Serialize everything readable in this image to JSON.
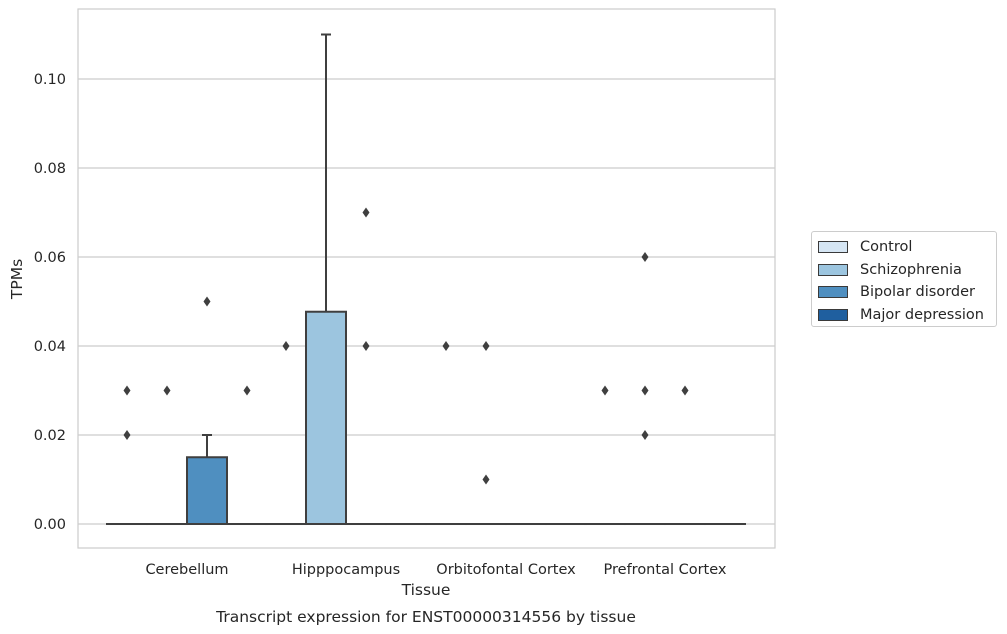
{
  "chart_data": {
    "type": "box",
    "title": "Transcript expression for ENST00000314556 by tissue",
    "xlabel": "Tissue",
    "ylabel": "TPMs",
    "ylim": [
      -0.005,
      0.1163
    ],
    "yticks": [
      "0.00",
      "0.02",
      "0.04",
      "0.06",
      "0.08",
      "0.10"
    ],
    "ytick_values": [
      0,
      0.02,
      0.04,
      0.06,
      0.08,
      0.1
    ],
    "grid": true,
    "legend_position": "right",
    "categories": [
      "Cerebellum",
      "Hipppocampus",
      "Orbitofontal Cortex",
      "Prefrontal Cortex"
    ],
    "series": [
      {
        "name": "Control",
        "color": "#d6e6f4",
        "boxes": [
          {
            "q1": 0,
            "median": 0,
            "q3": 0,
            "whislo": 0,
            "whishi": 0,
            "fliers": [
              0.03,
              0.02
            ]
          },
          {
            "q1": 0,
            "median": 0,
            "q3": 0,
            "whislo": 0,
            "whishi": 0,
            "fliers": [
              0.04
            ]
          },
          {
            "q1": 0,
            "median": 0,
            "q3": 0,
            "whislo": 0,
            "whishi": 0,
            "fliers": [
              0.04
            ]
          },
          {
            "q1": 0,
            "median": 0,
            "q3": 0,
            "whislo": 0,
            "whishi": 0,
            "fliers": [
              0.03
            ]
          }
        ]
      },
      {
        "name": "Schizophrenia",
        "color": "#9cc5df",
        "boxes": [
          {
            "q1": 0,
            "median": 0,
            "q3": 0,
            "whislo": 0,
            "whishi": 0,
            "fliers": [
              0.03
            ]
          },
          {
            "q1": 0,
            "median": 0,
            "q3": 0.0477,
            "whislo": 0,
            "whishi": 0.11,
            "fliers": []
          },
          {
            "q1": 0,
            "median": 0,
            "q3": 0,
            "whislo": 0,
            "whishi": 0,
            "fliers": [
              0.04,
              0.01
            ]
          },
          {
            "q1": 0,
            "median": 0,
            "q3": 0,
            "whislo": 0,
            "whishi": 0,
            "fliers": [
              0.06,
              0.03,
              0.02
            ]
          }
        ]
      },
      {
        "name": "Bipolar disorder",
        "color": "#4f8fc0",
        "boxes": [
          {
            "q1": 0,
            "median": 0,
            "q3": 0.015,
            "whislo": 0,
            "whishi": 0.02,
            "fliers": [
              0.05
            ]
          },
          {
            "q1": 0,
            "median": 0,
            "q3": 0,
            "whislo": 0,
            "whishi": 0,
            "fliers": [
              0.07,
              0.04
            ]
          },
          {
            "q1": 0,
            "median": 0,
            "q3": 0,
            "whislo": 0,
            "whishi": 0,
            "fliers": []
          },
          {
            "q1": 0,
            "median": 0,
            "q3": 0,
            "whislo": 0,
            "whishi": 0,
            "fliers": [
              0.03
            ]
          }
        ]
      },
      {
        "name": "Major depression",
        "color": "#1f5f9f",
        "boxes": [
          {
            "q1": 0,
            "median": 0,
            "q3": 0,
            "whislo": 0,
            "whishi": 0,
            "fliers": [
              0.03
            ]
          },
          {
            "q1": 0,
            "median": 0,
            "q3": 0,
            "whislo": 0,
            "whishi": 0,
            "fliers": []
          },
          {
            "q1": 0,
            "median": 0,
            "q3": 0,
            "whislo": 0,
            "whishi": 0,
            "fliers": []
          },
          {
            "q1": 0,
            "median": 0,
            "q3": 0,
            "whislo": 0,
            "whishi": 0,
            "fliers": []
          }
        ]
      }
    ]
  }
}
